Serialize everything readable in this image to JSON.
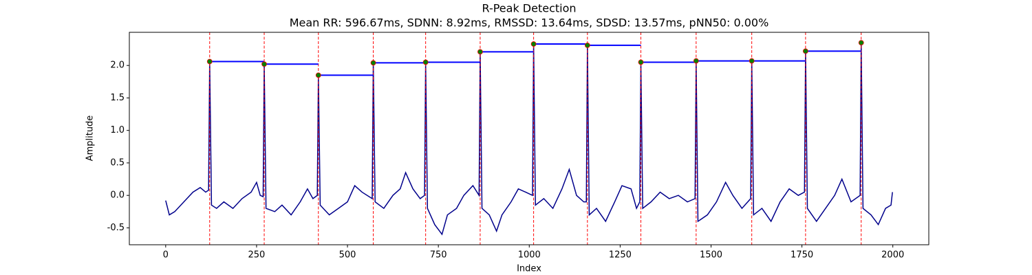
{
  "chart_data": {
    "type": "line",
    "title": "R-Peak Detection",
    "subtitle": "Mean RR: 596.67ms, SDNN: 8.92ms, RMSSD: 13.64ms, SDSD: 13.57ms, pNN50: 0.00%",
    "xlabel": "Index",
    "ylabel": "Amplitude",
    "color": "#00008b",
    "x": [
      0,
      10,
      25,
      50,
      75,
      95,
      110,
      118,
      121,
      126,
      140,
      160,
      185,
      210,
      235,
      250,
      260,
      268,
      271,
      276,
      300,
      320,
      345,
      370,
      390,
      405,
      417,
      420,
      425,
      450,
      475,
      500,
      520,
      540,
      568,
      571,
      576,
      600,
      625,
      645,
      660,
      680,
      700,
      712,
      715,
      720,
      740,
      760,
      775,
      800,
      820,
      845,
      862,
      865,
      870,
      890,
      910,
      925,
      950,
      970,
      990,
      1009,
      1012,
      1017,
      1040,
      1065,
      1090,
      1110,
      1130,
      1150,
      1157,
      1160,
      1165,
      1185,
      1210,
      1235,
      1255,
      1280,
      1295,
      1304,
      1307,
      1312,
      1335,
      1360,
      1385,
      1410,
      1435,
      1456,
      1459,
      1464,
      1490,
      1515,
      1540,
      1560,
      1585,
      1609,
      1612,
      1617,
      1640,
      1665,
      1690,
      1715,
      1740,
      1757,
      1760,
      1765,
      1790,
      1815,
      1840,
      1860,
      1885,
      1910,
      1913,
      1918,
      1940,
      1960,
      1980,
      1995,
      1999
    ],
    "values": [
      -0.08,
      -0.3,
      -0.25,
      -0.1,
      0.05,
      0.12,
      0.05,
      0.08,
      2.06,
      -0.15,
      -0.2,
      -0.1,
      -0.2,
      -0.05,
      0.05,
      0.2,
      0.0,
      -0.02,
      2.02,
      -0.2,
      -0.25,
      -0.15,
      -0.3,
      -0.1,
      0.1,
      -0.05,
      0.0,
      1.85,
      -0.15,
      -0.3,
      -0.2,
      -0.1,
      0.15,
      0.05,
      -0.05,
      2.04,
      -0.1,
      -0.2,
      0.0,
      0.1,
      0.35,
      0.1,
      -0.05,
      0.0,
      2.05,
      -0.2,
      -0.45,
      -0.6,
      -0.3,
      -0.2,
      0.0,
      0.15,
      0.0,
      2.21,
      -0.2,
      -0.3,
      -0.55,
      -0.3,
      -0.1,
      0.1,
      0.05,
      0.0,
      2.33,
      -0.15,
      -0.05,
      -0.2,
      0.1,
      0.4,
      0.0,
      -0.1,
      -0.1,
      2.31,
      -0.3,
      -0.2,
      -0.4,
      -0.1,
      0.15,
      0.1,
      -0.2,
      -0.1,
      2.05,
      -0.2,
      -0.1,
      0.05,
      -0.05,
      0.0,
      -0.1,
      -0.05,
      2.07,
      -0.4,
      -0.3,
      -0.1,
      0.2,
      0.0,
      -0.2,
      -0.05,
      2.07,
      -0.3,
      -0.2,
      -0.4,
      -0.1,
      0.1,
      0.0,
      0.05,
      2.22,
      -0.2,
      -0.4,
      -0.2,
      0.0,
      0.25,
      -0.1,
      0.0,
      2.35,
      -0.2,
      -0.3,
      -0.45,
      -0.2,
      -0.15,
      0.05
    ],
    "peaks": {
      "x": [
        121,
        271,
        420,
        571,
        715,
        865,
        1012,
        1160,
        1307,
        1459,
        1612,
        1760,
        1913
      ],
      "values": [
        2.06,
        2.02,
        1.85,
        2.04,
        2.05,
        2.21,
        2.33,
        2.31,
        2.05,
        2.07,
        2.07,
        2.22,
        2.35
      ],
      "color": "green",
      "edge_color": "red",
      "line_color": "red",
      "interval_color": "blue"
    },
    "xlim": [
      -99.95,
      2098.95
    ],
    "ylim": [
      -0.76,
      2.51
    ],
    "xticks": [
      0,
      250,
      500,
      750,
      1000,
      1250,
      1500,
      1750,
      2000
    ],
    "yticks": [
      -0.5,
      {
        "value": 0,
        "label": "0.0"
      },
      0.5,
      {
        "value": 1,
        "label": "1.0"
      },
      1.5,
      {
        "value": 2,
        "label": "2.0"
      }
    ]
  }
}
